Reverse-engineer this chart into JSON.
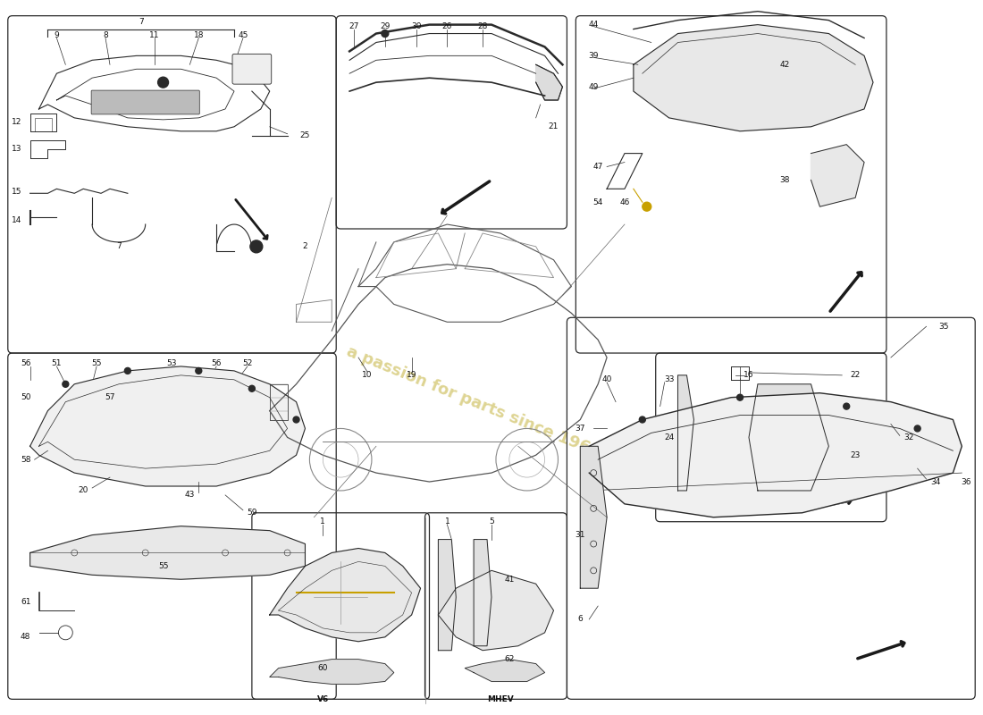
{
  "bg_color": "#ffffff",
  "watermark_text": "a passion for parts since 1965",
  "watermark_color": "#c8b84a",
  "line_color": "#2a2a2a",
  "draw_color": "#2a2a2a",
  "box_edge_color": "#2a2a2a",
  "label_color": "#111111",
  "arrow_color": "#1a1a1a"
}
